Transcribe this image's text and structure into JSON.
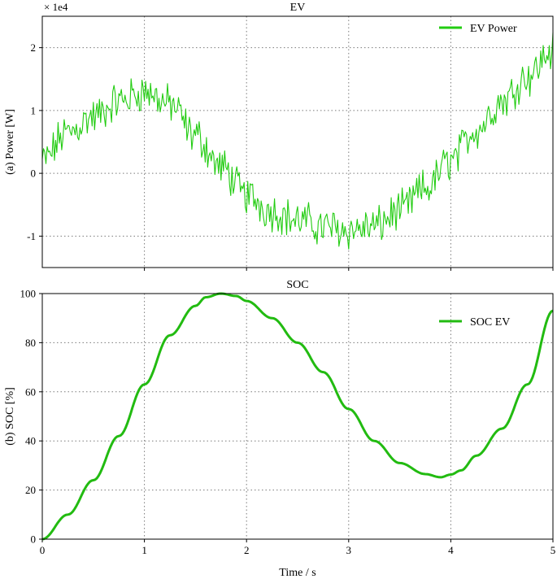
{
  "chart_data": [
    {
      "type": "line",
      "title": "EV",
      "xlabel": "",
      "ylabel": "(a) Power [W]",
      "offset_text": "× 1e4",
      "xlim": [
        0,
        5
      ],
      "ylim": [
        -1.5,
        2.5
      ],
      "y_scale": 10000,
      "x_ticks": [
        1,
        2,
        3,
        4,
        5
      ],
      "y_ticks": [
        -1,
        0,
        1,
        2
      ],
      "y_tick_labels": [
        "-1",
        "0",
        "1",
        "2"
      ],
      "grid": true,
      "legend_position": "top-right",
      "color": "#22cc11",
      "series": [
        {
          "name": "EV Power",
          "noise": "high-frequency random fluctuation of about ±3000 W around trend",
          "x": [
            0,
            0.25,
            0.5,
            0.75,
            1.0,
            1.25,
            1.5,
            1.75,
            2.0,
            2.25,
            2.5,
            2.75,
            3.0,
            3.25,
            3.5,
            3.75,
            4.0,
            4.25,
            4.5,
            4.75,
            5.0
          ],
          "values": [
            2000,
            6500,
            9000,
            11500,
            13000,
            11000,
            6000,
            1000,
            -3500,
            -6000,
            -7500,
            -8500,
            -9000,
            -8500,
            -6000,
            -2500,
            2000,
            7000,
            11500,
            15500,
            19500
          ]
        }
      ]
    },
    {
      "type": "line",
      "title": "SOC",
      "xlabel": "Time / s",
      "ylabel": "(b) SOC [%]",
      "xlim": [
        0,
        5
      ],
      "ylim": [
        0,
        100
      ],
      "x_ticks": [
        0,
        1,
        2,
        3,
        4,
        5
      ],
      "y_ticks": [
        0,
        20,
        40,
        60,
        80,
        100
      ],
      "grid": true,
      "legend_position": "top-right",
      "color": "#22bb11",
      "series": [
        {
          "name": "SOC EV",
          "x": [
            0,
            0.25,
            0.5,
            0.75,
            1.0,
            1.25,
            1.5,
            1.6,
            1.75,
            1.9,
            2.0,
            2.25,
            2.5,
            2.75,
            3.0,
            3.25,
            3.5,
            3.75,
            3.9,
            4.0,
            4.1,
            4.25,
            4.5,
            4.75,
            5.0
          ],
          "values": [
            0,
            10,
            24,
            42,
            63,
            83,
            95,
            98.5,
            100,
            99,
            97,
            90,
            80,
            68,
            53,
            40,
            31,
            26.5,
            25.2,
            26.3,
            28,
            34,
            45,
            63,
            93
          ]
        }
      ]
    }
  ]
}
